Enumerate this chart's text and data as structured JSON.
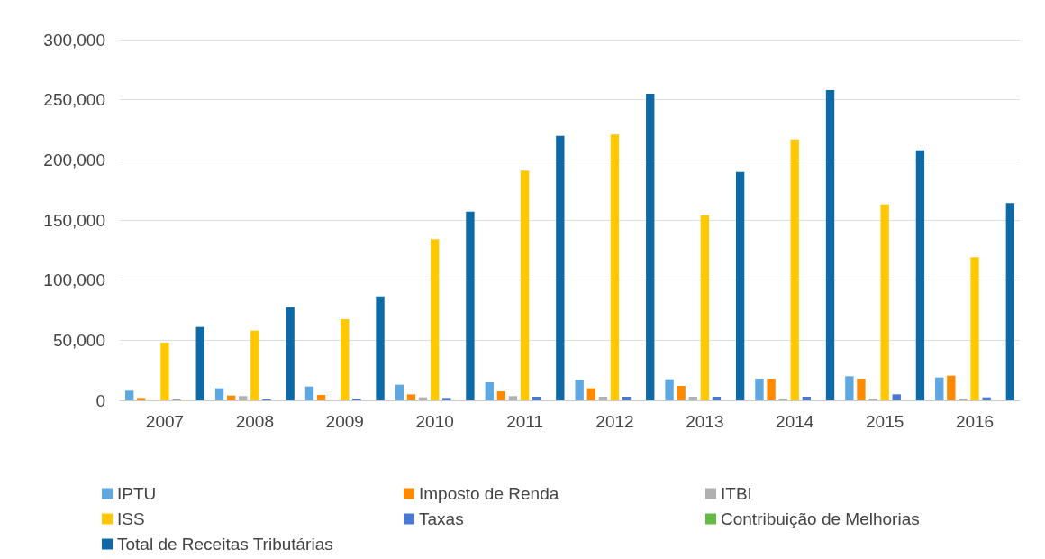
{
  "chart_data": {
    "type": "bar",
    "categories": [
      "2007",
      "2008",
      "2009",
      "2010",
      "2011",
      "2012",
      "2013",
      "2014",
      "2015",
      "2016"
    ],
    "series": [
      {
        "name": "IPTU",
        "color": "#5ea7e0",
        "values": [
          8000,
          10000,
          11500,
          13000,
          15000,
          17000,
          17500,
          18000,
          20000,
          19000
        ]
      },
      {
        "name": "Imposto de Renda",
        "color": "#ff8a00",
        "values": [
          2000,
          4000,
          4500,
          5000,
          7500,
          10000,
          12000,
          18000,
          18000,
          20500
        ]
      },
      {
        "name": "ITBI",
        "color": "#b0b0b0",
        "values": [
          null,
          3500,
          null,
          2500,
          3500,
          3000,
          3000,
          1500,
          1500,
          1500
        ]
      },
      {
        "name": "ISS",
        "color": "#ffc800",
        "values": [
          48000,
          58000,
          67500,
          134000,
          191000,
          221000,
          154000,
          217000,
          163000,
          119000
        ]
      },
      {
        "name": "Taxas",
        "color": "#4a78d0",
        "values": [
          500,
          1000,
          1500,
          2000,
          3000,
          3000,
          3000,
          3000,
          5000,
          2500
        ]
      },
      {
        "name": "Contribuição de Melhorias",
        "color": "#63bb45",
        "values": [
          0,
          0,
          0,
          0,
          0,
          0,
          0,
          0,
          0,
          0
        ]
      },
      {
        "name": "Total de Receitas Tributárias",
        "color": "#0e6aa6",
        "values": [
          61000,
          77500,
          86500,
          157000,
          220000,
          255000,
          190000,
          258000,
          208000,
          164000
        ]
      }
    ],
    "ylim": [
      0,
      300000
    ],
    "yticks": [
      0,
      {
        "value": 50000,
        "label": "50,000"
      },
      {
        "value": 100000,
        "label": "100,000"
      },
      {
        "value": 150000,
        "label": "150,000"
      },
      {
        "value": 200000,
        "label": "200,000"
      },
      {
        "value": 250000,
        "label": "250,000"
      },
      {
        "value": 300000,
        "label": "300,000"
      }
    ],
    "grid": "y",
    "legend": "bottom"
  }
}
